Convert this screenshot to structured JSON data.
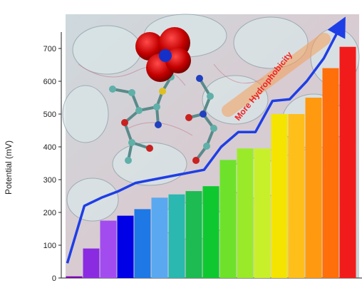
{
  "chart_data": {
    "type": "bar",
    "ylabel": "Potential (mV)",
    "xlabel": "",
    "title": "",
    "ylim": [
      0,
      750
    ],
    "yticks": [
      0,
      100,
      200,
      300,
      400,
      500,
      600,
      700
    ],
    "values": [
      5,
      90,
      175,
      190,
      210,
      245,
      255,
      265,
      280,
      360,
      395,
      395,
      500,
      500,
      550,
      640,
      705
    ],
    "bar_colors": [
      "#7a00b0",
      "#8a2be2",
      "#a24cf0",
      "#0000e6",
      "#1e78e6",
      "#5aa8f0",
      "#2ab8b0",
      "#1dbb52",
      "#0fc830",
      "#6ee22a",
      "#9bea2a",
      "#c8f02a",
      "#f5e400",
      "#ffbf1a",
      "#ff9910",
      "#ff6f0a",
      "#f21b1b"
    ],
    "trend_line": [
      45,
      220,
      245,
      265,
      290,
      300,
      310,
      320,
      330,
      400,
      445,
      445,
      540,
      545,
      600,
      670,
      770
    ],
    "annotation": "More Hydrophobicity",
    "arrow_color": "#1e3ee6",
    "annotation_color": "#ee2222",
    "background": "molecular surface rendering with ball-and-stick residues"
  }
}
